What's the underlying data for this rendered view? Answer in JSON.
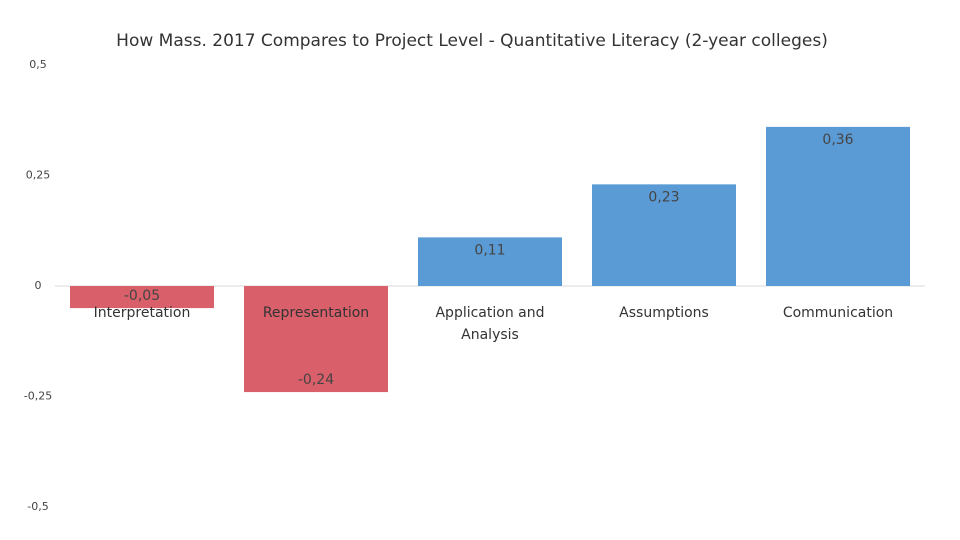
{
  "chart_data": {
    "type": "bar",
    "title": "How Mass. 2017 Compares to Project Level - Quantitative Literacy (2-year colleges)",
    "categories": [
      "Interpretation",
      "Representation",
      "Application and Analysis",
      "Assumptions",
      "Communication"
    ],
    "values": [
      -0.05,
      -0.24,
      0.11,
      0.23,
      0.36
    ],
    "value_labels": [
      "-0,05",
      "-0,24",
      "0,11",
      "0,23",
      "0,36"
    ],
    "colors": [
      "#d95f6a",
      "#d95f6a",
      "#5b9bd5",
      "#5b9bd5",
      "#5b9bd5"
    ],
    "ylim": [
      -0.5,
      0.5
    ],
    "yticks": [
      {
        "value": -0.5,
        "label": "-0,5"
      },
      {
        "value": -0.25,
        "label": "-0,25"
      },
      {
        "value": 0,
        "label": "0"
      },
      {
        "value": 0.25,
        "label": "0,25"
      },
      {
        "value": 0.5,
        "label": "0,5"
      }
    ],
    "grid": false
  }
}
